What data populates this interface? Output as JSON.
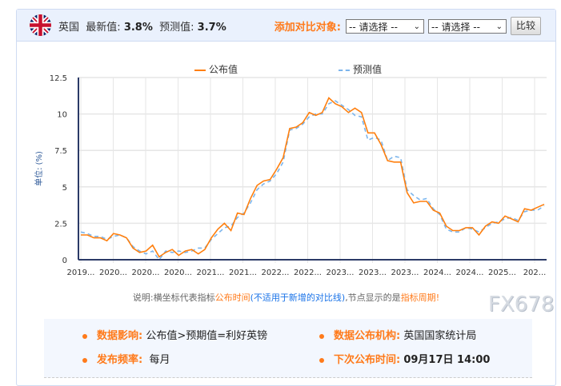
{
  "header": {
    "country": "英国",
    "latest_label": "最新值:",
    "latest_value": "3.8%",
    "forecast_label": "预测值:",
    "forecast_value": "3.7%",
    "add_compare_label": "添加对比对象:",
    "select1": "-- 请选择 --",
    "select2": "-- 请选择 --",
    "compare_button": "比较",
    "flag_icon": "uk-flag-icon"
  },
  "legend": {
    "actual": "公布值",
    "forecast": "预测值"
  },
  "note": {
    "prefix": "说明:横坐标代表指标",
    "highlight1": "公布时间",
    "paren": "(不适用于新增的对比线)",
    "middle": ",节点显示的是",
    "highlight2": "指标周期",
    "suffix": "!"
  },
  "info": {
    "impact_label": "数据影响:",
    "impact_value": "公布值>预期值=利好英镑",
    "agency_label": "数据公布机构:",
    "agency_value": "英国国家统计局",
    "freq_label": "发布频率:",
    "freq_value": "每月",
    "next_label": "下次公布时间:",
    "next_value": "09月17日 14:00"
  },
  "watermark": "FX678",
  "chart_data": {
    "type": "line",
    "ylabel": "单位: (%)",
    "ylim": [
      0,
      12.5
    ],
    "yticks": [
      "0",
      "2.5",
      "5",
      "7.5",
      "10",
      "12.5"
    ],
    "xtick_labels": [
      "2019...",
      "2020...",
      "2020...",
      "2020...",
      "2021...",
      "2021...",
      "2022...",
      "2022...",
      "2023...",
      "2023...",
      "2023...",
      "2024...",
      "2024...",
      "2025...",
      "202..."
    ],
    "grid": true,
    "legend_position": "top",
    "colors": {
      "actual": "#ff7f0e",
      "forecast": "#7cb5ec"
    },
    "series": [
      {
        "name": "公布值",
        "values": [
          1.7,
          1.7,
          1.5,
          1.5,
          1.3,
          1.8,
          1.7,
          1.5,
          0.8,
          0.5,
          0.6,
          1.0,
          0.2,
          0.5,
          0.7,
          0.3,
          0.6,
          0.7,
          0.4,
          0.7,
          1.5,
          2.1,
          2.5,
          2.0,
          3.2,
          3.1,
          4.2,
          5.1,
          5.4,
          5.5,
          6.2,
          7.0,
          9.0,
          9.1,
          9.4,
          10.1,
          9.9,
          10.1,
          11.1,
          10.7,
          10.5,
          10.1,
          10.4,
          10.1,
          8.7,
          8.7,
          7.9,
          6.8,
          6.7,
          6.7,
          4.6,
          3.9,
          4.0,
          4.0,
          3.4,
          3.2,
          2.3,
          2.0,
          2.0,
          2.2,
          2.2,
          1.7,
          2.3,
          2.6,
          2.5,
          3.0,
          2.8,
          2.6,
          3.5,
          3.4,
          3.6,
          3.8
        ]
      },
      {
        "name": "预测值",
        "values": [
          1.9,
          1.8,
          1.6,
          1.6,
          1.4,
          1.6,
          1.7,
          1.5,
          0.9,
          0.6,
          0.4,
          0.6,
          0.0,
          0.6,
          0.5,
          0.6,
          0.5,
          0.6,
          0.8,
          0.8,
          1.4,
          1.8,
          2.2,
          2.3,
          2.9,
          3.2,
          3.9,
          4.8,
          5.2,
          5.4,
          5.9,
          6.7,
          8.9,
          9.0,
          9.3,
          9.8,
          10.0,
          10.0,
          10.7,
          10.9,
          10.6,
          10.3,
          9.9,
          9.8,
          8.2,
          8.4,
          8.2,
          6.8,
          7.1,
          7.0,
          4.8,
          4.4,
          4.1,
          4.2,
          3.5,
          3.1,
          2.1,
          1.9,
          1.9,
          2.2,
          2.1,
          1.9,
          2.2,
          2.5,
          2.6,
          2.8,
          2.9,
          2.7,
          3.3,
          3.4,
          3.4,
          3.7
        ]
      }
    ]
  }
}
